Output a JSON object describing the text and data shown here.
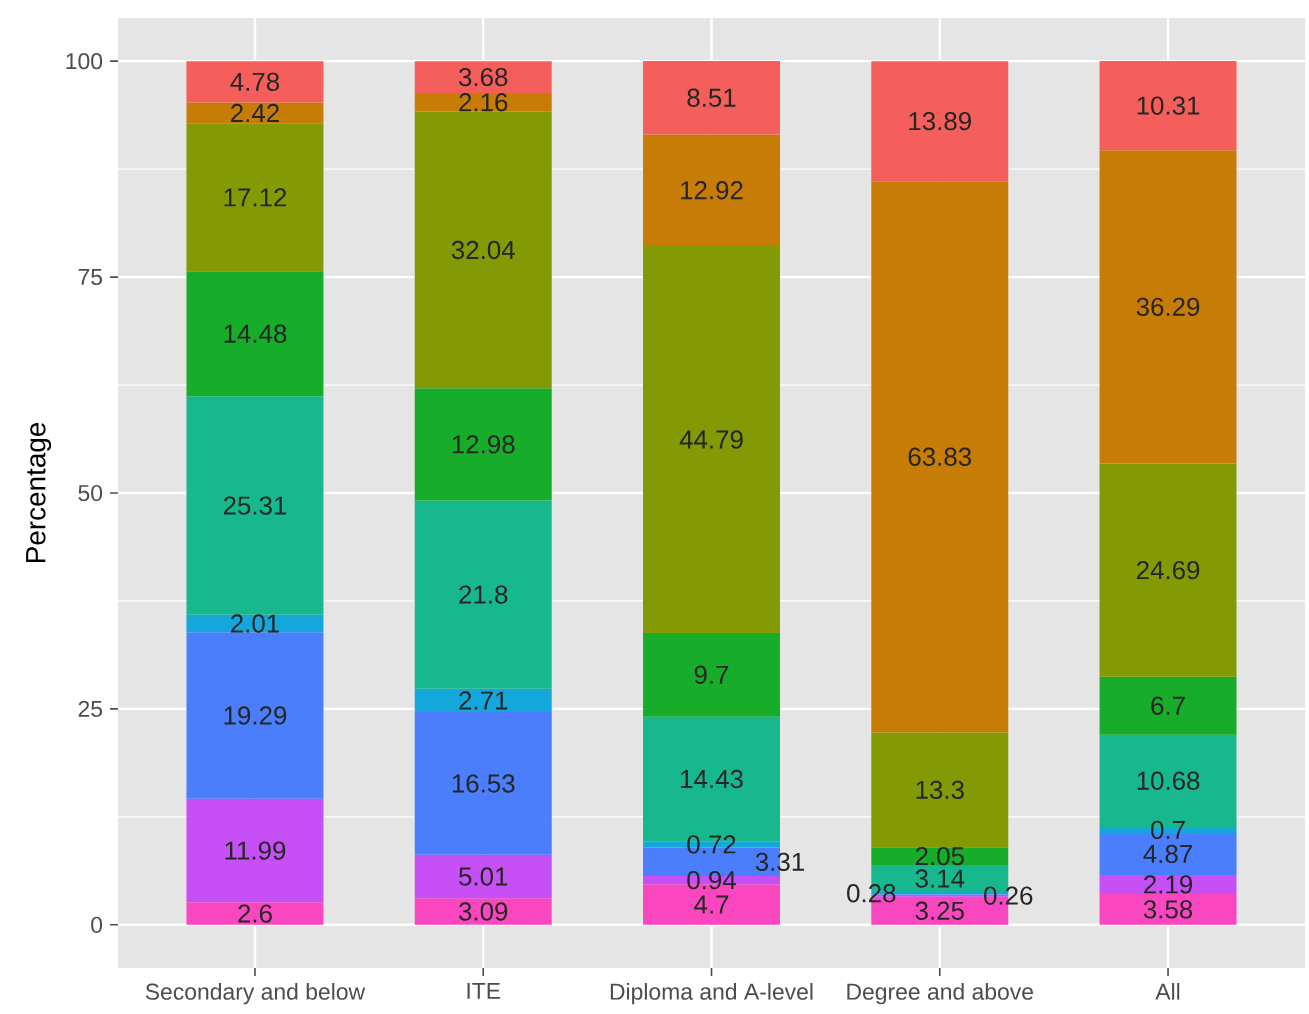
{
  "chart_data": {
    "type": "bar",
    "stacked": true,
    "ylabel": "Percentage",
    "categories": [
      "Secondary and below",
      "ITE",
      "Diploma and A-level",
      "Degree and above",
      "All"
    ],
    "ylim": [
      -5,
      105
    ],
    "yticks": [
      0,
      25,
      50,
      75,
      100
    ],
    "grid": true,
    "data_labels": true,
    "series": [
      {
        "color": "#fa47c0",
        "values": [
          2.6,
          3.09,
          4.7,
          3.25,
          3.58
        ]
      },
      {
        "color": "#c64ff5",
        "values": [
          11.99,
          5.01,
          0.94,
          0.26,
          2.19
        ]
      },
      {
        "color": "#4a7efd",
        "values": [
          19.29,
          16.53,
          3.31,
          null,
          4.87
        ]
      },
      {
        "color": "#14a7db",
        "values": [
          2.01,
          2.71,
          0.72,
          0.28,
          0.7
        ]
      },
      {
        "color": "#17b88e",
        "values": [
          25.31,
          21.8,
          14.43,
          3.14,
          10.68
        ]
      },
      {
        "color": "#17ad2b",
        "values": [
          14.48,
          12.98,
          9.7,
          2.05,
          6.7
        ]
      },
      {
        "color": "#839a04",
        "values": [
          17.12,
          32.04,
          44.79,
          13.3,
          24.69
        ]
      },
      {
        "color": "#c77c05",
        "values": [
          2.42,
          2.16,
          12.92,
          63.83,
          36.29
        ]
      },
      {
        "color": "#f45f5b",
        "values": [
          4.78,
          3.68,
          8.51,
          13.89,
          10.31
        ]
      }
    ]
  }
}
